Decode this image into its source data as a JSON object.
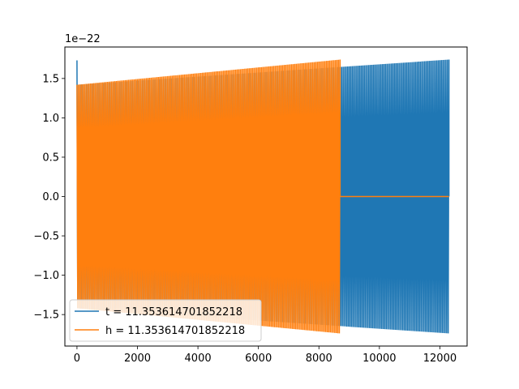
{
  "chart_data": {
    "type": "line",
    "title": "",
    "xlabel": "",
    "ylabel": "",
    "y_offset_label": "1e−22",
    "xlim": [
      -400,
      12900
    ],
    "ylim": [
      -1.9,
      1.9
    ],
    "xticks": [
      0,
      2000,
      4000,
      6000,
      8000,
      10000,
      12000
    ],
    "xtick_labels": [
      "0",
      "2000",
      "4000",
      "6000",
      "8000",
      "10000",
      "12000"
    ],
    "yticks": [
      -1.5,
      -1.0,
      -0.5,
      0.0,
      0.5,
      1.0,
      1.5
    ],
    "ytick_labels": [
      "−1.5",
      "−1.0",
      "−0.5",
      "0.0",
      "0.5",
      "1.0",
      "1.5"
    ],
    "grid": false,
    "legend_position": "lower-left",
    "series": [
      {
        "name": "t = 11.353614701852218",
        "color": "#1f77b4",
        "x_range": [
          0,
          12300
        ],
        "amplitude_start": 1.42,
        "amplitude_end": 1.74,
        "initial_spike": 1.73
      },
      {
        "name": "h = 11.353614701852218",
        "color": "#ff7f0e",
        "x_range": [
          0,
          8700
        ],
        "amplitude_start": 1.42,
        "amplitude_end": 1.74,
        "flat_after": 8700,
        "flat_until": 12300,
        "flat_value": 0.0
      }
    ]
  }
}
